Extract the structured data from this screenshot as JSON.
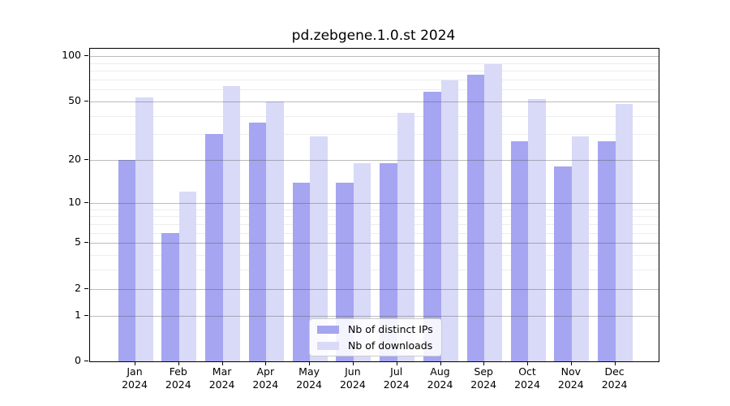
{
  "chart_data": {
    "type": "bar",
    "title": "pd.zebgene.1.0.st 2024",
    "categories": [
      "Jan 2024",
      "Feb 2024",
      "Mar 2024",
      "Apr 2024",
      "May 2024",
      "Jun 2024",
      "Jul 2024",
      "Aug 2024",
      "Sep 2024",
      "Oct 2024",
      "Nov 2024",
      "Dec 2024"
    ],
    "series": [
      {
        "name": "Nb of distinct IPs",
        "color": "#a5a5f1",
        "values": [
          20,
          6,
          30,
          36,
          14,
          14,
          19,
          58,
          75,
          27,
          18,
          27
        ]
      },
      {
        "name": "Nb of downloads",
        "color": "#d9d9f8",
        "values": [
          53,
          12,
          63,
          50,
          29,
          19,
          42,
          69,
          89,
          52,
          29,
          48
        ]
      }
    ],
    "xlabel": "",
    "ylabel": "",
    "yscale": "log1p",
    "yticks": [
      0,
      1,
      2,
      5,
      10,
      20,
      50,
      100
    ],
    "minor_gridlines": [
      3,
      4,
      6,
      7,
      8,
      9,
      30,
      40,
      60,
      70,
      80,
      90
    ],
    "ylim": [
      0,
      112
    ],
    "grid": true,
    "legend_position": "lower center inside plot",
    "bar_text_color": "#000000"
  }
}
